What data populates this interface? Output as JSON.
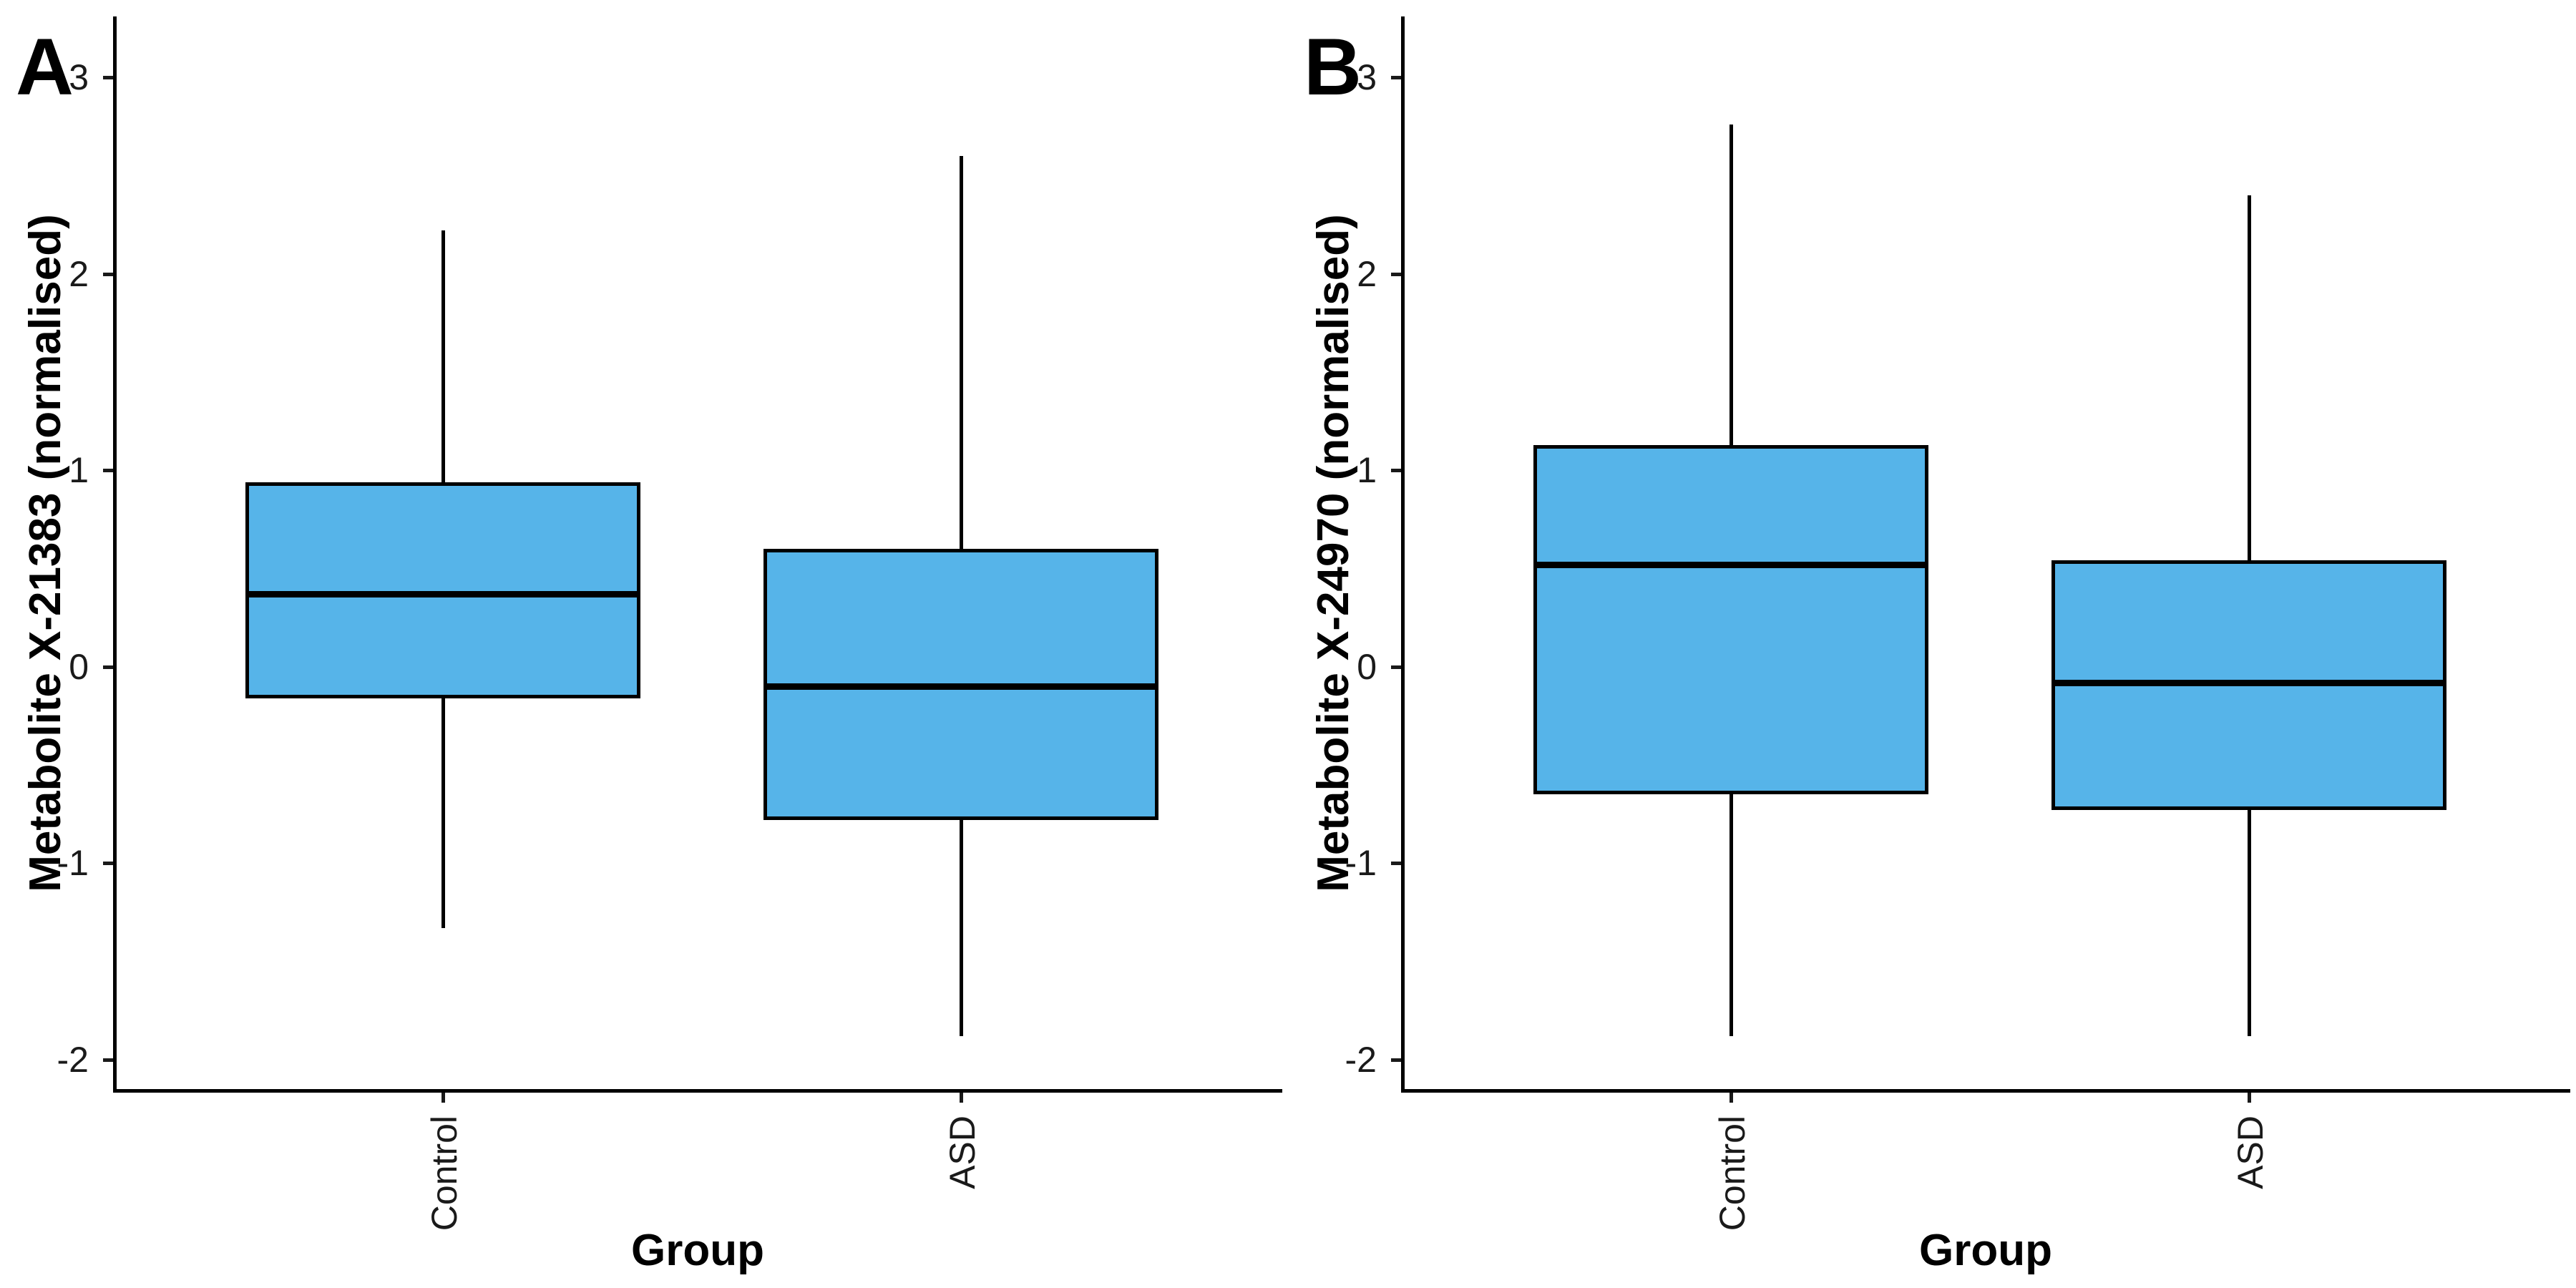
{
  "figure": {
    "background": "#ffffff",
    "box_fill": "#56B4E9",
    "box_border": "#000000",
    "axis_color": "#000000",
    "tick_text_color": "#1a1a1a"
  },
  "chart_data": [
    {
      "type": "box",
      "panel_label": "A",
      "title": "",
      "xlabel": "Group",
      "ylabel": "Metabolite X-21383 (normalised)",
      "categories": [
        "Control",
        "ASD"
      ],
      "yticks": [
        3,
        2,
        1,
        0,
        -1,
        -2
      ],
      "ylim": [
        -2.15,
        3.31
      ],
      "grid": "off",
      "legend": "none",
      "series": [
        {
          "name": "Control",
          "whisker_low": -1.33,
          "q1": -0.16,
          "median": 0.37,
          "q3": 0.94,
          "whisker_high": 2.22,
          "outliers": []
        },
        {
          "name": "ASD",
          "whisker_low": -1.88,
          "q1": -0.78,
          "median": -0.1,
          "q3": 0.6,
          "whisker_high": 2.6,
          "outliers": []
        }
      ]
    },
    {
      "type": "box",
      "panel_label": "B",
      "title": "",
      "xlabel": "Group",
      "ylabel": "Metabolite X-24970 (normalised)",
      "categories": [
        "Control",
        "ASD"
      ],
      "yticks": [
        3,
        2,
        1,
        0,
        -1,
        -2
      ],
      "ylim": [
        -2.15,
        3.31
      ],
      "grid": "off",
      "legend": "none",
      "series": [
        {
          "name": "Control",
          "whisker_low": -1.88,
          "q1": -0.65,
          "median": 0.52,
          "q3": 1.13,
          "whisker_high": 2.76,
          "outliers": []
        },
        {
          "name": "ASD",
          "whisker_low": -1.88,
          "q1": -0.73,
          "median": -0.08,
          "q3": 0.54,
          "whisker_high": 2.4,
          "outliers": []
        }
      ]
    }
  ]
}
